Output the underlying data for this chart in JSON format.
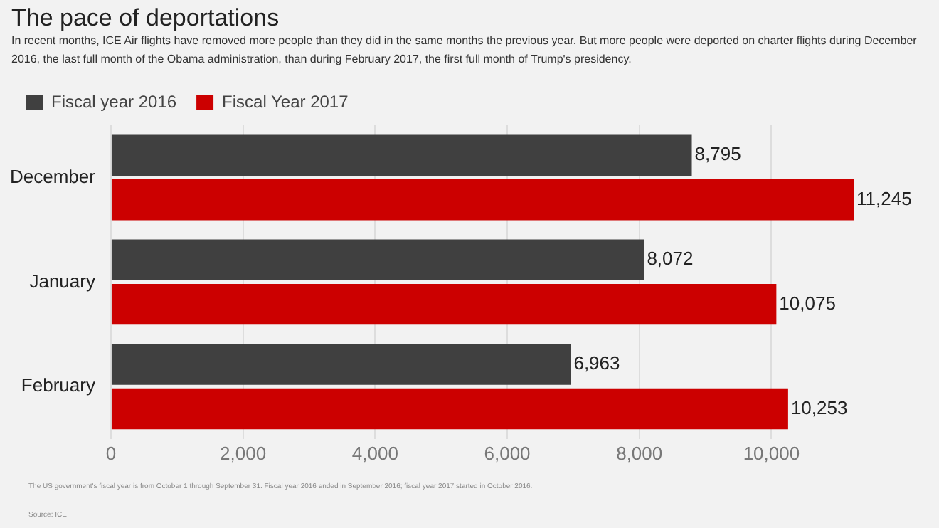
{
  "chart_data": {
    "type": "bar",
    "orientation": "horizontal",
    "title": "The pace of deportations",
    "subtitle": "In recent months, ICE Air flights have removed more people than they did in the same months the previous year. But more people were deported on charter flights during December 2016, the last full month of the Obama administration, than during February 2017, the first full month of Trump's presidency.",
    "categories": [
      "December",
      "January",
      "February"
    ],
    "series": [
      {
        "name": "Fiscal year 2016",
        "color": "#404040",
        "values": [
          8795,
          8072,
          6963
        ],
        "value_labels": [
          "8,795",
          "8,072",
          "6,963"
        ]
      },
      {
        "name": "Fiscal Year 2017",
        "color": "#cc0000",
        "values": [
          11245,
          10075,
          10253
        ],
        "value_labels": [
          "11,245",
          "10,075",
          "10,253"
        ]
      }
    ],
    "xlim": [
      0,
      11245
    ],
    "xticks": [
      {
        "value": 0,
        "label": "0"
      },
      {
        "value": 2000,
        "label": "2,000"
      },
      {
        "value": 4000,
        "label": "4,000"
      },
      {
        "value": 6000,
        "label": "6,000"
      },
      {
        "value": 8000,
        "label": "8,000"
      },
      {
        "value": 10000,
        "label": "10,000"
      }
    ],
    "grid": "x",
    "legend": "top left",
    "annotations": [
      "The US government's fiscal year is from October 1 through September 31. Fiscal year 2016 ended in September 2016; fiscal year 2017 started in October 2016.",
      "Source: ICE"
    ]
  }
}
